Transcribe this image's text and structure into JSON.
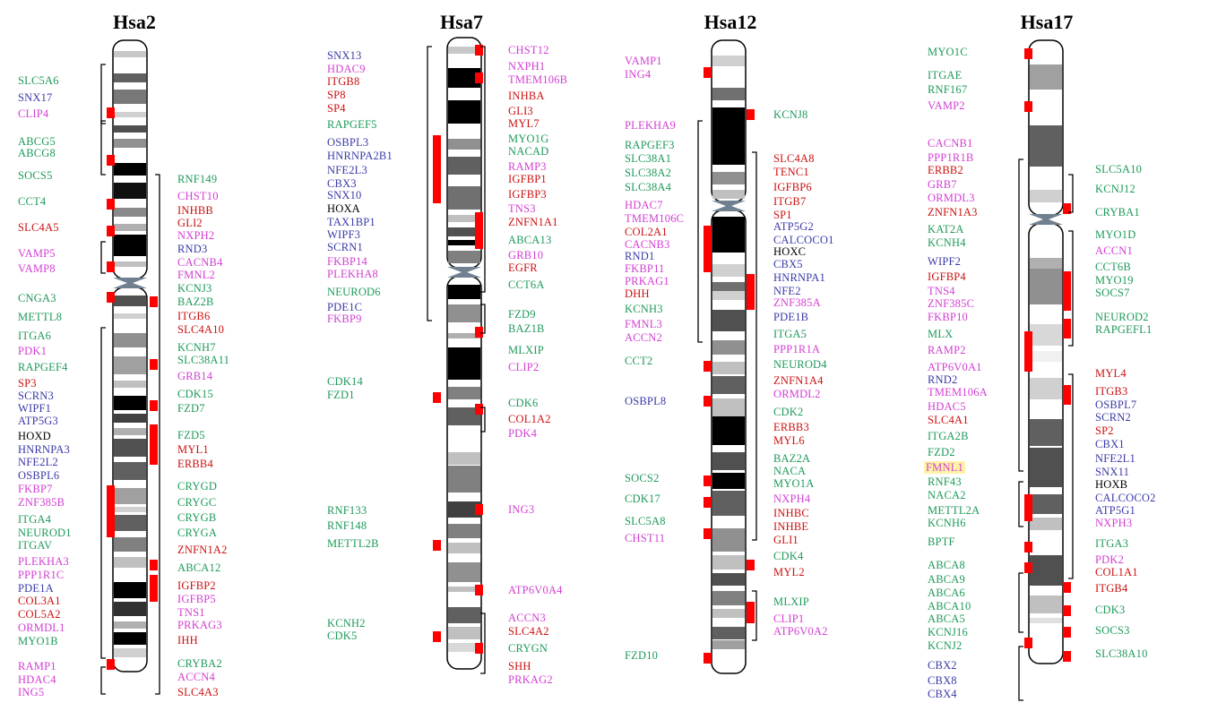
{
  "colors": {
    "green": "#1f9a5a",
    "blue": "#3a3aa8",
    "magenta": "#d23fd2",
    "red": "#cc1111",
    "black": "#000000",
    "marker": "#ff0000",
    "highlight": "#fff3a6"
  },
  "chromosomes": [
    {
      "id": "hsa2",
      "title": "Hsa2",
      "genes": [
        [
          "SLC5A6",
          "green"
        ],
        [
          "SNX17",
          "blue"
        ],
        [
          "CLIP4",
          "magenta"
        ],
        [
          "ABCG5",
          "green"
        ],
        [
          "ABCG8",
          "green"
        ],
        [
          "SOCS5",
          "green"
        ],
        [
          "CCT4",
          "green"
        ],
        [
          "SLC4A5",
          "red"
        ],
        [
          "VAMP5",
          "magenta"
        ],
        [
          "VAMP8",
          "magenta"
        ],
        [
          "CNGA3",
          "green"
        ],
        [
          "METTL8",
          "green"
        ],
        [
          "ITGA6",
          "green"
        ],
        [
          "PDK1",
          "magenta"
        ],
        [
          "RAPGEF4",
          "green"
        ],
        [
          "SP3",
          "red"
        ],
        [
          "SCRN3",
          "blue"
        ],
        [
          "WIPF1",
          "blue"
        ],
        [
          "ATP5G3",
          "blue"
        ],
        [
          "HOXD",
          "black"
        ],
        [
          "HNRNPA3",
          "blue"
        ],
        [
          "NFE2L2",
          "blue"
        ],
        [
          "OSBPL6",
          "blue"
        ],
        [
          "FKBP7",
          "magenta"
        ],
        [
          "ZNF385B",
          "magenta"
        ],
        [
          "ITGA4",
          "green"
        ],
        [
          "NEUROD1",
          "green"
        ],
        [
          "ITGAV",
          "green"
        ],
        [
          "PLEKHA3",
          "magenta"
        ],
        [
          "PPP1R1C",
          "magenta"
        ],
        [
          "PDE1A",
          "blue"
        ],
        [
          "COL3A1",
          "red"
        ],
        [
          "COL5A2",
          "red"
        ],
        [
          "ORMDL1",
          "magenta"
        ],
        [
          "MYO1B",
          "green"
        ],
        [
          "RAMP1",
          "magenta"
        ],
        [
          "HDAC4",
          "magenta"
        ],
        [
          "ING5",
          "magenta"
        ],
        [
          "RNF149",
          "green"
        ],
        [
          "CHST10",
          "magenta"
        ],
        [
          "INHBB",
          "red"
        ],
        [
          "GLI2",
          "red"
        ],
        [
          "NXPH2",
          "magenta"
        ],
        [
          "RND3",
          "blue"
        ],
        [
          "CACNB4",
          "magenta"
        ],
        [
          "FMNL2",
          "magenta"
        ],
        [
          "KCNJ3",
          "green"
        ],
        [
          "BAZ2B",
          "green"
        ],
        [
          "ITGB6",
          "red"
        ],
        [
          "SLC4A10",
          "red"
        ],
        [
          "KCNH7",
          "green"
        ],
        [
          "SLC38A11",
          "green"
        ],
        [
          "GRB14",
          "magenta"
        ],
        [
          "CDK15",
          "green"
        ],
        [
          "FZD7",
          "green"
        ],
        [
          "FZD5",
          "green"
        ],
        [
          "MYL1",
          "red"
        ],
        [
          "ERBB4",
          "red"
        ],
        [
          "CRYGD",
          "green"
        ],
        [
          "CRYGC",
          "green"
        ],
        [
          "CRYGB",
          "green"
        ],
        [
          "CRYGA",
          "green"
        ],
        [
          "ZNFN1A2",
          "red"
        ],
        [
          "ABCA12",
          "green"
        ],
        [
          "IGFBP2",
          "red"
        ],
        [
          "IGFBP5",
          "magenta"
        ],
        [
          "TNS1",
          "magenta"
        ],
        [
          "PRKAG3",
          "magenta"
        ],
        [
          "IHH",
          "red"
        ],
        [
          "CRYBA2",
          "green"
        ],
        [
          "ACCN4",
          "magenta"
        ],
        [
          "SLC4A3",
          "red"
        ]
      ]
    },
    {
      "id": "hsa7",
      "title": "Hsa7",
      "genes": [
        [
          "SNX13",
          "blue"
        ],
        [
          "HDAC9",
          "magenta"
        ],
        [
          "ITGB8",
          "red"
        ],
        [
          "SP8",
          "red"
        ],
        [
          "SP4",
          "red"
        ],
        [
          "RAPGEF5",
          "green"
        ],
        [
          "OSBPL3",
          "blue"
        ],
        [
          "HNRNPA2B1",
          "blue"
        ],
        [
          "NFE2L3",
          "blue"
        ],
        [
          "CBX3",
          "blue"
        ],
        [
          "SNX10",
          "blue"
        ],
        [
          "HOXA",
          "black"
        ],
        [
          "TAX1BP1",
          "blue"
        ],
        [
          "WIPF3",
          "blue"
        ],
        [
          "SCRN1",
          "blue"
        ],
        [
          "FKBP14",
          "magenta"
        ],
        [
          "PLEKHA8",
          "magenta"
        ],
        [
          "NEUROD6",
          "green"
        ],
        [
          "PDE1C",
          "blue"
        ],
        [
          "FKBP9",
          "magenta"
        ],
        [
          "CDK14",
          "green"
        ],
        [
          "FZD1",
          "green"
        ],
        [
          "RNF133",
          "green"
        ],
        [
          "RNF148",
          "green"
        ],
        [
          "METTL2B",
          "green"
        ],
        [
          "KCNH2",
          "green"
        ],
        [
          "CDK5",
          "green"
        ],
        [
          "CHST12",
          "magenta"
        ],
        [
          "NXPH1",
          "magenta"
        ],
        [
          "TMEM106B",
          "magenta"
        ],
        [
          "INHBA",
          "red"
        ],
        [
          "GLI3",
          "red"
        ],
        [
          "MYL7",
          "red"
        ],
        [
          "MYO1G",
          "green"
        ],
        [
          "NACAD",
          "green"
        ],
        [
          "RAMP3",
          "magenta"
        ],
        [
          "IGFBP1",
          "red"
        ],
        [
          "IGFBP3",
          "red"
        ],
        [
          "TNS3",
          "magenta"
        ],
        [
          "ZNFN1A1",
          "red"
        ],
        [
          "ABCA13",
          "green"
        ],
        [
          "GRB10",
          "magenta"
        ],
        [
          "EGFR",
          "red"
        ],
        [
          "CCT6A",
          "green"
        ],
        [
          "FZD9",
          "green"
        ],
        [
          "BAZ1B",
          "green"
        ],
        [
          "MLXIP",
          "green"
        ],
        [
          "CLIP2",
          "magenta"
        ],
        [
          "CDK6",
          "green"
        ],
        [
          "COL1A2",
          "red"
        ],
        [
          "PDK4",
          "magenta"
        ],
        [
          "ING3",
          "magenta"
        ],
        [
          "ATP6V0A4",
          "magenta"
        ],
        [
          "ACCN3",
          "magenta"
        ],
        [
          "SLC4A2",
          "red"
        ],
        [
          "CRYGN",
          "green"
        ],
        [
          "SHH",
          "red"
        ],
        [
          "PRKAG2",
          "magenta"
        ]
      ]
    },
    {
      "id": "hsa12",
      "title": "Hsa12",
      "genes": [
        [
          "VAMP1",
          "magenta"
        ],
        [
          "ING4",
          "magenta"
        ],
        [
          "PLEKHA9",
          "magenta"
        ],
        [
          "RAPGEF3",
          "green"
        ],
        [
          "SLC38A1",
          "green"
        ],
        [
          "SLC38A2",
          "green"
        ],
        [
          "SLC38A4",
          "green"
        ],
        [
          "HDAC7",
          "magenta"
        ],
        [
          "TMEM106C",
          "magenta"
        ],
        [
          "COL2A1",
          "red"
        ],
        [
          "CACNB3",
          "magenta"
        ],
        [
          "RND1",
          "blue"
        ],
        [
          "FKBP11",
          "magenta"
        ],
        [
          "PRKAG1",
          "magenta"
        ],
        [
          "DHH",
          "red"
        ],
        [
          "KCNH3",
          "green"
        ],
        [
          "FMNL3",
          "magenta"
        ],
        [
          "ACCN2",
          "magenta"
        ],
        [
          "CCT2",
          "green"
        ],
        [
          "OSBPL8",
          "blue"
        ],
        [
          "SOCS2",
          "green"
        ],
        [
          "CDK17",
          "green"
        ],
        [
          "SLC5A8",
          "green"
        ],
        [
          "CHST11",
          "magenta"
        ],
        [
          "FZD10",
          "green"
        ],
        [
          "KCNJ8",
          "green"
        ],
        [
          "SLC4A8",
          "red"
        ],
        [
          "TENC1",
          "red"
        ],
        [
          "IGFBP6",
          "red"
        ],
        [
          "ITGB7",
          "red"
        ],
        [
          "SP1",
          "red"
        ],
        [
          "ATP5G2",
          "blue"
        ],
        [
          "CALCOCO1",
          "blue"
        ],
        [
          "HOXC",
          "black"
        ],
        [
          "CBX5",
          "blue"
        ],
        [
          "HNRNPA1",
          "blue"
        ],
        [
          "NFE2",
          "blue"
        ],
        [
          "ZNF385A",
          "magenta"
        ],
        [
          "PDE1B",
          "blue"
        ],
        [
          "ITGA5",
          "green"
        ],
        [
          "PPP1R1A",
          "magenta"
        ],
        [
          "NEUROD4",
          "green"
        ],
        [
          "ZNFN1A4",
          "red"
        ],
        [
          "ORMDL2",
          "magenta"
        ],
        [
          "CDK2",
          "green"
        ],
        [
          "ERBB3",
          "red"
        ],
        [
          "MYL6",
          "red"
        ],
        [
          "BAZ2A",
          "green"
        ],
        [
          "NACA",
          "green"
        ],
        [
          "MYO1A",
          "green"
        ],
        [
          "NXPH4",
          "magenta"
        ],
        [
          "INHBC",
          "red"
        ],
        [
          "INHBE",
          "red"
        ],
        [
          "GLI1",
          "red"
        ],
        [
          "CDK4",
          "green"
        ],
        [
          "MYL2",
          "red"
        ],
        [
          "MLXIP",
          "green"
        ],
        [
          "CLIP1",
          "magenta"
        ],
        [
          "ATP6V0A2",
          "magenta"
        ]
      ]
    },
    {
      "id": "hsa17",
      "title": "Hsa17",
      "genes": [
        [
          "MYO1C",
          "green"
        ],
        [
          "ITGAE",
          "green"
        ],
        [
          "RNF167",
          "green"
        ],
        [
          "VAMP2",
          "magenta"
        ],
        [
          "CACNB1",
          "magenta"
        ],
        [
          "PPP1R1B",
          "magenta"
        ],
        [
          "ERBB2",
          "red"
        ],
        [
          "GRB7",
          "magenta"
        ],
        [
          "ORMDL3",
          "magenta"
        ],
        [
          "ZNFN1A3",
          "red"
        ],
        [
          "KAT2A",
          "green"
        ],
        [
          "KCNH4",
          "green"
        ],
        [
          "WIPF2",
          "blue"
        ],
        [
          "IGFBP4",
          "red"
        ],
        [
          "TNS4",
          "magenta"
        ],
        [
          "ZNF385C",
          "magenta"
        ],
        [
          "FKBP10",
          "magenta"
        ],
        [
          "MLX",
          "green"
        ],
        [
          "RAMP2",
          "magenta"
        ],
        [
          "ATP6V0A1",
          "magenta"
        ],
        [
          "RND2",
          "blue"
        ],
        [
          "TMEM106A",
          "magenta"
        ],
        [
          "HDAC5",
          "magenta"
        ],
        [
          "SLC4A1",
          "red"
        ],
        [
          "ITGA2B",
          "green"
        ],
        [
          "FZD2",
          "green"
        ],
        [
          "FMNL1",
          "magenta"
        ],
        [
          "RNF43",
          "green"
        ],
        [
          "NACA2",
          "green"
        ],
        [
          "METTL2A",
          "green"
        ],
        [
          "KCNH6",
          "green"
        ],
        [
          "BPTF",
          "green"
        ],
        [
          "ABCA8",
          "green"
        ],
        [
          "ABCA9",
          "green"
        ],
        [
          "ABCA6",
          "green"
        ],
        [
          "ABCA10",
          "green"
        ],
        [
          "ABCA5",
          "green"
        ],
        [
          "KCNJ16",
          "green"
        ],
        [
          "KCNJ2",
          "green"
        ],
        [
          "CBX2",
          "blue"
        ],
        [
          "CBX8",
          "blue"
        ],
        [
          "CBX4",
          "blue"
        ],
        [
          "SLC5A10",
          "green"
        ],
        [
          "KCNJ12",
          "green"
        ],
        [
          "CRYBA1",
          "green"
        ],
        [
          "MYO1D",
          "green"
        ],
        [
          "ACCN1",
          "magenta"
        ],
        [
          "CCT6B",
          "green"
        ],
        [
          "MYO19",
          "green"
        ],
        [
          "SOCS7",
          "green"
        ],
        [
          "NEUROD2",
          "green"
        ],
        [
          "RAPGEFL1",
          "green"
        ],
        [
          "MYL4",
          "red"
        ],
        [
          "ITGB3",
          "red"
        ],
        [
          "OSBPL7",
          "blue"
        ],
        [
          "SCRN2",
          "blue"
        ],
        [
          "SP2",
          "red"
        ],
        [
          "CBX1",
          "blue"
        ],
        [
          "NFE2L1",
          "blue"
        ],
        [
          "SNX11",
          "blue"
        ],
        [
          "HOXB",
          "black"
        ],
        [
          "CALCOCO2",
          "blue"
        ],
        [
          "ATP5G1",
          "blue"
        ],
        [
          "NXPH3",
          "magenta"
        ],
        [
          "ITGA3",
          "green"
        ],
        [
          "PDK2",
          "magenta"
        ],
        [
          "COL1A1",
          "red"
        ],
        [
          "ITGB4",
          "red"
        ],
        [
          "CDK3",
          "green"
        ],
        [
          "SOCS3",
          "green"
        ],
        [
          "SLC38A10",
          "green"
        ]
      ]
    }
  ]
}
